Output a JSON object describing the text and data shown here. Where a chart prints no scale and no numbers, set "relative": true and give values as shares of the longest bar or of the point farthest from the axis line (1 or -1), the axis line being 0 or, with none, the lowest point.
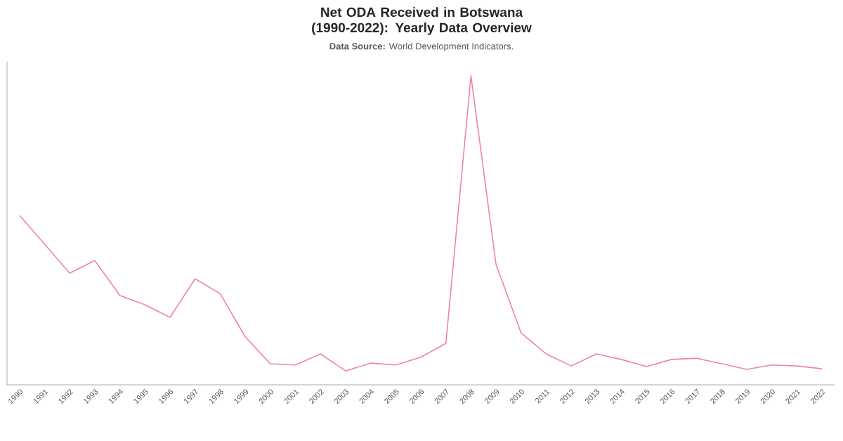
{
  "chart_data": {
    "type": "line",
    "relative": true,
    "title": "Net ODA Received in Botswana (1990-2022): Yearly Data Overview",
    "annotations": [
      "**Data Source:** World Development Indicators."
    ],
    "categories": [
      "1990",
      "1991",
      "1992",
      "1993",
      "1994",
      "1995",
      "1996",
      "1997",
      "1998",
      "1999",
      "2000",
      "2001",
      "2002",
      "2003",
      "2004",
      "2005",
      "2006",
      "2007",
      "2008",
      "2009",
      "2010",
      "2011",
      "2012",
      "2013",
      "2014",
      "2015",
      "2016",
      "2017",
      "2018",
      "2019",
      "2020",
      "2021",
      "2022"
    ],
    "color": "#ee82b0",
    "values": [
      0.548,
      0.455,
      0.361,
      0.402,
      0.289,
      0.259,
      0.218,
      0.343,
      0.295,
      0.155,
      0.068,
      0.064,
      0.1,
      0.045,
      0.07,
      0.064,
      0.089,
      0.134,
      1,
      0.389,
      0.168,
      0.1,
      0.061,
      0.1,
      0.082,
      0.059,
      0.082,
      0.086,
      0.068,
      0.05,
      0.064,
      0.061,
      0.052
    ]
  }
}
